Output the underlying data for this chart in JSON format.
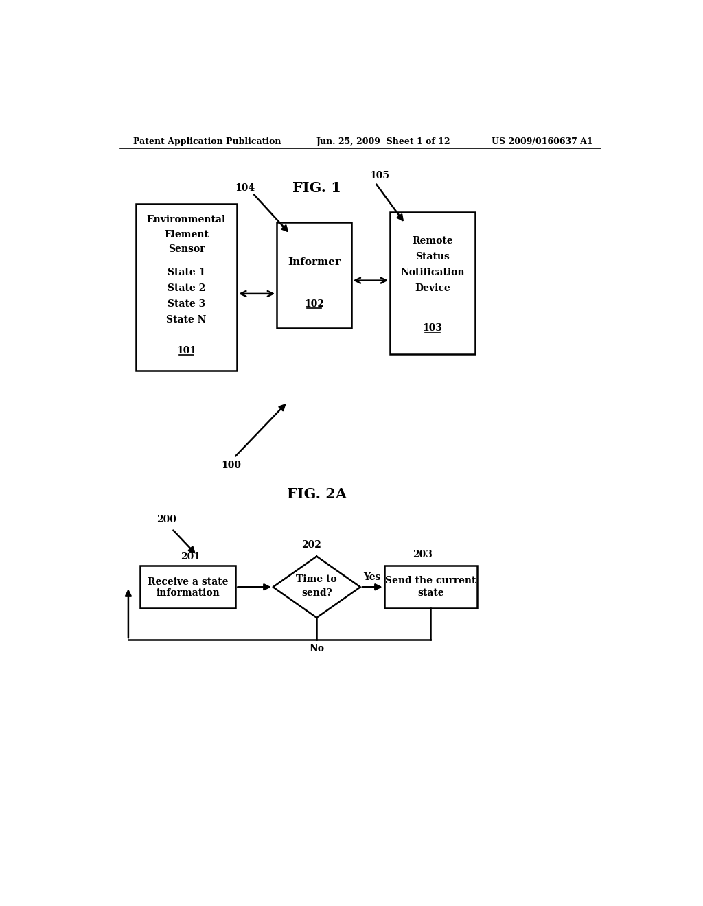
{
  "bg_color": "#ffffff",
  "header_left": "Patent Application Publication",
  "header_center": "Jun. 25, 2009  Sheet 1 of 12",
  "header_right": "US 2009/0160637 A1",
  "fig1_title": "FIG. 1",
  "fig2a_title": "FIG. 2A",
  "label_100": "100",
  "label_104": "104",
  "label_105": "105",
  "label_200": "200",
  "label_201": "201",
  "label_202": "202",
  "label_203": "203",
  "yes_label": "Yes",
  "no_label": "No"
}
